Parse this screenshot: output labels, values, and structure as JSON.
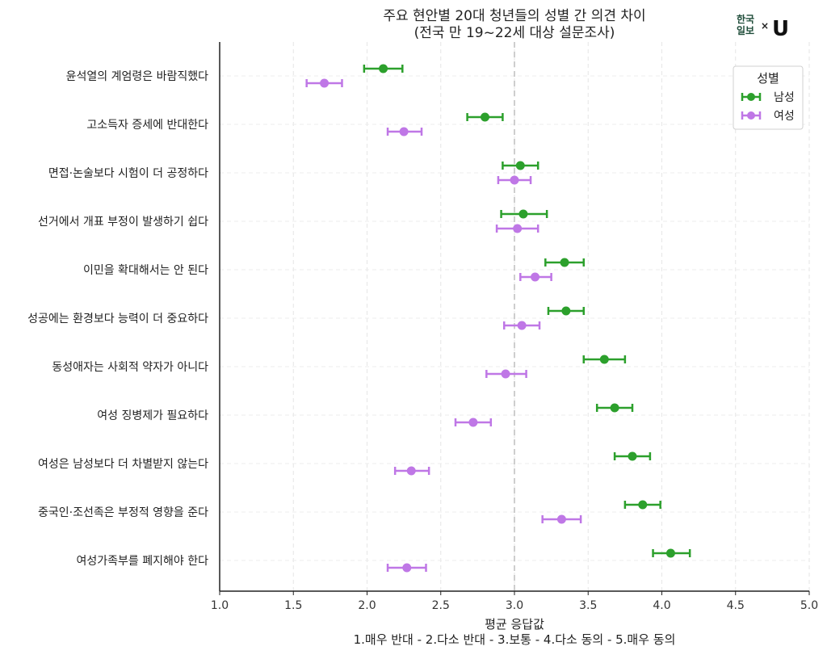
{
  "chart_data": {
    "type": "scatter",
    "title": "주요 현안별 20대 청년들의 성별 간 의견 차이",
    "subtitle": "(전국 만 19~22세 대상 설문조사)",
    "xlabel": "평균 응답값",
    "xlabel_note": "1.매우 반대 - 2.다소 반대 - 3.보통 - 4.다소 동의 - 5.매우 동의",
    "ylabel": "",
    "xlim": [
      1.0,
      5.0
    ],
    "xticks": [
      "1.0",
      "1.5",
      "2.0",
      "2.5",
      "3.0",
      "3.5",
      "4.0",
      "4.5",
      "5.0"
    ],
    "reference_line": 3.0,
    "grid": true,
    "legend": {
      "title": "성별",
      "position": "top-right"
    },
    "categories": [
      "윤석열의 계엄령은 바람직했다",
      "고소득자 증세에 반대한다",
      "면접·논술보다 시험이 더 공정하다",
      "선거에서 개표 부정이 발생하기 쉽다",
      "이민을 확대해서는 안 된다",
      "성공에는 환경보다 능력이 더 중요하다",
      "동성애자는 사회적 약자가 아니다",
      "여성 징병제가 필요하다",
      "여성은 남성보다 더 차별받지 않는다",
      "중국인·조선족은 부정적 영향을 준다",
      "여성가족부를 폐지해야 한다"
    ],
    "series": [
      {
        "name": "남성",
        "color": "#2ca02c",
        "values": [
          2.11,
          2.8,
          3.04,
          3.06,
          3.34,
          3.35,
          3.61,
          3.68,
          3.8,
          3.87,
          4.06
        ],
        "error_low": [
          1.98,
          2.68,
          2.92,
          2.91,
          3.21,
          3.23,
          3.47,
          3.56,
          3.68,
          3.75,
          3.94
        ],
        "error_high": [
          2.24,
          2.92,
          3.16,
          3.22,
          3.47,
          3.47,
          3.75,
          3.8,
          3.92,
          3.99,
          4.19
        ]
      },
      {
        "name": "여성",
        "color": "#bf77e6",
        "values": [
          1.71,
          2.25,
          3.0,
          3.02,
          3.14,
          3.05,
          2.94,
          2.72,
          2.3,
          3.32,
          2.27
        ],
        "error_low": [
          1.59,
          2.14,
          2.89,
          2.88,
          3.04,
          2.93,
          2.81,
          2.6,
          2.19,
          3.19,
          2.14
        ],
        "error_high": [
          1.83,
          2.37,
          3.11,
          3.16,
          3.25,
          3.17,
          3.08,
          2.84,
          2.42,
          3.45,
          2.4
        ]
      }
    ]
  },
  "logo": {
    "left_line1": "한국",
    "left_line2": "일보",
    "separator": "×",
    "mark": "U"
  }
}
